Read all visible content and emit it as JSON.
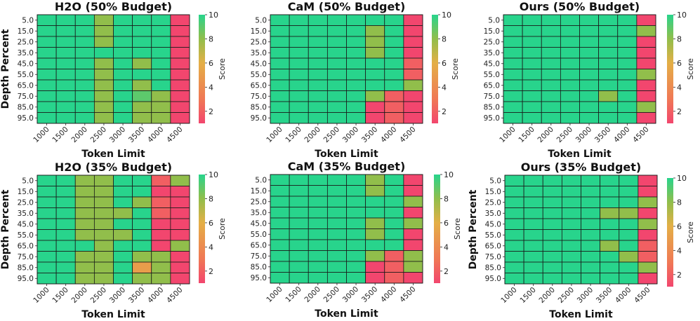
{
  "chart_data": [
    {
      "type": "heatmap",
      "title": "H2O (50% Budget)",
      "xlabel": "Token Limit",
      "ylabel": "Depth Percent",
      "x_categories": [
        "1000",
        "1500",
        "2000",
        "2500",
        "3000",
        "3500",
        "4000",
        "4500"
      ],
      "y_categories": [
        "5.0",
        "15.0",
        "25.0",
        "35.0",
        "45.0",
        "55.0",
        "65.0",
        "75.0",
        "85.0",
        "95.0"
      ],
      "values": [
        [
          10,
          10,
          10,
          8,
          10,
          10,
          10,
          1
        ],
        [
          10,
          10,
          10,
          8,
          10,
          10,
          10,
          1
        ],
        [
          10,
          10,
          10,
          8,
          10,
          10,
          10,
          1
        ],
        [
          10,
          10,
          10,
          10,
          10,
          10,
          10,
          1
        ],
        [
          10,
          10,
          10,
          8,
          10,
          8,
          10,
          1
        ],
        [
          10,
          10,
          10,
          8,
          10,
          10,
          10,
          1
        ],
        [
          10,
          10,
          10,
          8,
          10,
          8,
          10,
          1
        ],
        [
          10,
          10,
          10,
          8,
          10,
          9,
          8,
          1
        ],
        [
          10,
          10,
          10,
          8,
          10,
          8,
          8,
          1
        ],
        [
          10,
          10,
          10,
          8,
          10,
          8,
          8,
          1
        ]
      ],
      "colorbar": {
        "label": "Score",
        "ticks": [
          2,
          4,
          6,
          8,
          10
        ],
        "range": [
          1,
          10
        ]
      }
    },
    {
      "type": "heatmap",
      "title": "CaM (50% Budget)",
      "xlabel": "Token Limit",
      "ylabel": "",
      "x_categories": [
        "1000",
        "1500",
        "2000",
        "2500",
        "3000",
        "3500",
        "4000",
        "4500"
      ],
      "y_categories": [
        "5.0",
        "15.0",
        "25.0",
        "35.0",
        "45.0",
        "55.0",
        "65.0",
        "75.0",
        "85.0",
        "95.0"
      ],
      "values": [
        [
          10,
          10,
          10,
          10,
          10,
          10,
          10,
          1
        ],
        [
          10,
          10,
          10,
          10,
          10,
          8,
          10,
          1
        ],
        [
          10,
          10,
          10,
          10,
          10,
          8,
          10,
          1
        ],
        [
          10,
          10,
          10,
          10,
          10,
          8,
          10,
          1
        ],
        [
          10,
          10,
          10,
          10,
          10,
          10,
          10,
          2
        ],
        [
          10,
          10,
          10,
          10,
          10,
          10,
          10,
          2
        ],
        [
          10,
          10,
          10,
          10,
          10,
          10,
          10,
          8
        ],
        [
          10,
          10,
          10,
          10,
          10,
          8,
          2,
          1
        ],
        [
          10,
          10,
          10,
          10,
          10,
          1,
          2,
          1
        ],
        [
          10,
          10,
          10,
          10,
          10,
          1,
          2,
          1
        ]
      ],
      "colorbar": {
        "label": "Score",
        "ticks": [
          2,
          4,
          6,
          8,
          10
        ],
        "range": [
          1,
          10
        ]
      }
    },
    {
      "type": "heatmap",
      "title": "Ours (50% Budget)",
      "xlabel": "Token Limit",
      "ylabel": "",
      "x_categories": [
        "1000",
        "1500",
        "2000",
        "2500",
        "3000",
        "3500",
        "4000",
        "4500"
      ],
      "y_categories": [
        "5.0",
        "15.0",
        "25.0",
        "35.0",
        "45.0",
        "55.0",
        "65.0",
        "75.0",
        "85.0",
        "95.0"
      ],
      "values": [
        [
          10,
          10,
          10,
          10,
          10,
          10,
          10,
          1
        ],
        [
          10,
          10,
          10,
          10,
          10,
          10,
          10,
          8
        ],
        [
          10,
          10,
          10,
          10,
          10,
          10,
          10,
          1
        ],
        [
          10,
          10,
          10,
          10,
          10,
          10,
          10,
          1
        ],
        [
          10,
          10,
          10,
          10,
          10,
          10,
          10,
          1
        ],
        [
          10,
          10,
          10,
          10,
          10,
          10,
          10,
          8
        ],
        [
          10,
          10,
          10,
          10,
          10,
          10,
          10,
          1
        ],
        [
          10,
          10,
          10,
          10,
          10,
          8,
          10,
          1
        ],
        [
          10,
          10,
          10,
          10,
          10,
          10,
          10,
          8
        ],
        [
          10,
          10,
          10,
          10,
          10,
          10,
          10,
          1
        ]
      ],
      "colorbar": {
        "label": "Score",
        "ticks": [
          2,
          4,
          6,
          8,
          10
        ],
        "range": [
          1,
          10
        ]
      }
    },
    {
      "type": "heatmap",
      "title": "H2O (35% Budget)",
      "xlabel": "Token Limit",
      "ylabel": "Depth Percent",
      "x_categories": [
        "1000",
        "1500",
        "2000",
        "2500",
        "3000",
        "3500",
        "4000",
        "4500"
      ],
      "y_categories": [
        "5.0",
        "15.0",
        "25.0",
        "35.0",
        "45.0",
        "55.0",
        "65.0",
        "75.0",
        "85.0",
        "95.0"
      ],
      "values": [
        [
          10,
          10,
          8,
          8,
          10,
          10,
          2,
          8
        ],
        [
          10,
          10,
          8,
          8,
          10,
          10,
          1,
          1
        ],
        [
          10,
          10,
          8,
          8,
          10,
          8,
          2,
          1
        ],
        [
          10,
          10,
          8,
          8,
          8,
          10,
          2,
          1
        ],
        [
          10,
          10,
          8,
          8,
          10,
          10,
          1,
          1
        ],
        [
          10,
          10,
          8,
          8,
          8,
          10,
          1,
          1
        ],
        [
          10,
          10,
          10,
          8,
          10,
          10,
          1,
          8
        ],
        [
          10,
          10,
          8,
          8,
          10,
          8,
          8,
          1
        ],
        [
          10,
          10,
          8,
          8,
          10,
          5,
          8,
          1
        ],
        [
          10,
          10,
          8,
          8,
          10,
          8,
          8,
          1
        ]
      ],
      "colorbar": {
        "label": "Score",
        "ticks": [
          2,
          4,
          6,
          8,
          10
        ],
        "range": [
          1,
          10
        ]
      }
    },
    {
      "type": "heatmap",
      "title": "CaM (35% Budget)",
      "xlabel": "Token Limit",
      "ylabel": "",
      "x_categories": [
        "1000",
        "1500",
        "2000",
        "2500",
        "3000",
        "3500",
        "4000",
        "4500"
      ],
      "y_categories": [
        "5.0",
        "15.0",
        "25.0",
        "35.0",
        "45.0",
        "55.0",
        "65.0",
        "75.0",
        "85.0",
        "95.0"
      ],
      "values": [
        [
          10,
          10,
          10,
          10,
          10,
          8,
          10,
          1
        ],
        [
          10,
          10,
          10,
          10,
          10,
          8,
          10,
          1
        ],
        [
          10,
          10,
          10,
          10,
          10,
          10,
          10,
          8
        ],
        [
          10,
          10,
          10,
          10,
          10,
          10,
          10,
          1
        ],
        [
          10,
          10,
          10,
          10,
          10,
          8,
          10,
          8
        ],
        [
          10,
          10,
          10,
          10,
          10,
          8,
          10,
          1
        ],
        [
          10,
          10,
          10,
          10,
          10,
          10,
          10,
          1
        ],
        [
          10,
          10,
          10,
          10,
          10,
          8,
          2,
          8
        ],
        [
          10,
          10,
          10,
          10,
          10,
          1,
          2,
          8
        ],
        [
          10,
          10,
          10,
          10,
          10,
          1,
          2,
          1
        ]
      ],
      "colorbar": {
        "label": "Score",
        "ticks": [
          2,
          4,
          6,
          8,
          10
        ],
        "range": [
          1,
          10
        ]
      }
    },
    {
      "type": "heatmap",
      "title": "Ours (35% Budget)",
      "xlabel": "Token Limit",
      "ylabel": "Depth Percent",
      "x_categories": [
        "1000",
        "1500",
        "2000",
        "2500",
        "3000",
        "3500",
        "4000",
        "4500"
      ],
      "y_categories": [
        "5.0",
        "15.0",
        "25.0",
        "35.0",
        "45.0",
        "55.0",
        "65.0",
        "75.0",
        "85.0",
        "95.0"
      ],
      "values": [
        [
          10,
          10,
          10,
          10,
          10,
          10,
          10,
          1
        ],
        [
          10,
          10,
          10,
          10,
          10,
          10,
          10,
          1
        ],
        [
          10,
          10,
          10,
          10,
          10,
          10,
          10,
          8
        ],
        [
          10,
          10,
          10,
          10,
          10,
          8,
          8,
          1
        ],
        [
          10,
          10,
          10,
          10,
          10,
          10,
          10,
          8
        ],
        [
          10,
          10,
          10,
          10,
          10,
          10,
          10,
          1
        ],
        [
          10,
          10,
          10,
          10,
          10,
          8,
          10,
          2
        ],
        [
          10,
          10,
          10,
          10,
          10,
          10,
          8,
          2
        ],
        [
          10,
          10,
          10,
          10,
          10,
          10,
          10,
          8
        ],
        [
          10,
          10,
          10,
          10,
          10,
          10,
          10,
          1
        ]
      ],
      "colorbar": {
        "label": "Score",
        "ticks": [
          2,
          4,
          6,
          8,
          10
        ],
        "range": [
          1,
          10
        ]
      }
    }
  ]
}
